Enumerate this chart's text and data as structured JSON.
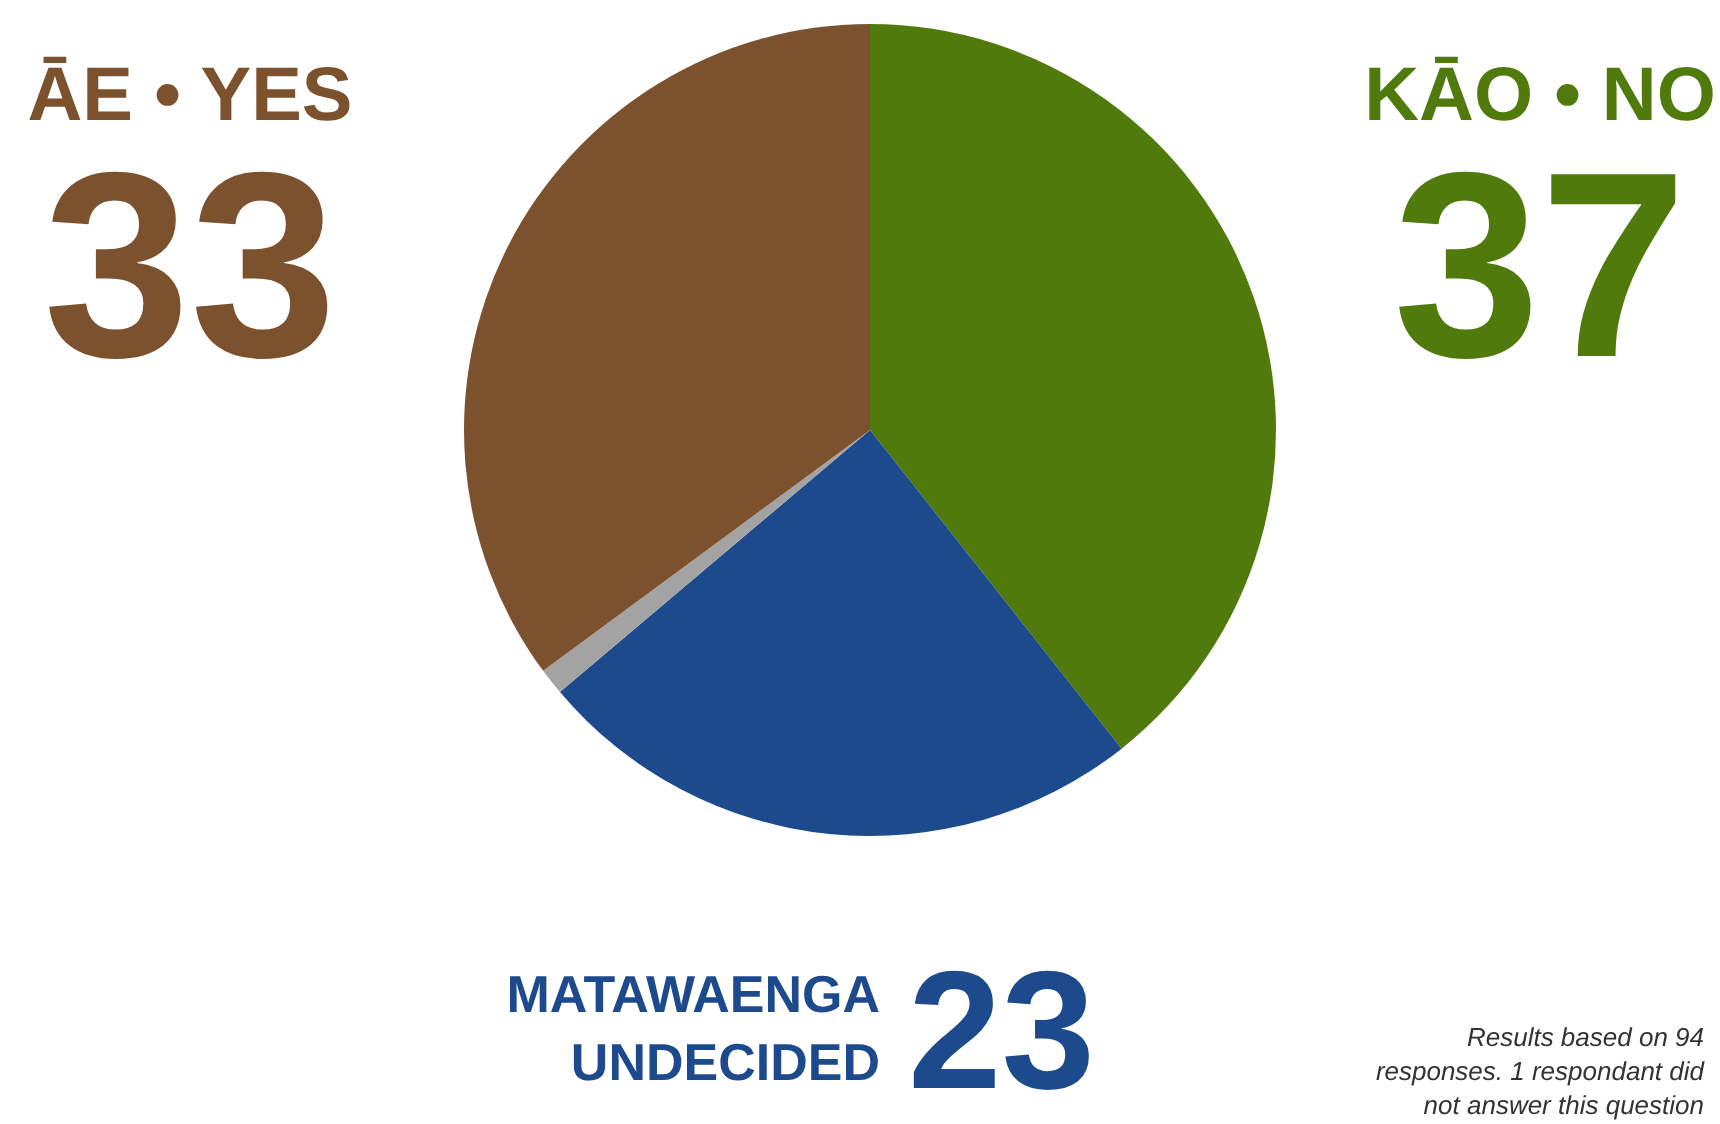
{
  "chart_data": {
    "type": "pie",
    "categories": [
      "KĀO • NO",
      "MATAWAENGA UNDECIDED",
      null,
      "ĀE • YES"
    ],
    "values": [
      37,
      23,
      1,
      33
    ],
    "colors": [
      "#507a0c",
      "#1c4a8c",
      "#a3a3a3",
      "#7c522e"
    ],
    "value_labels": [
      "37",
      "23",
      null,
      "33"
    ],
    "annotations": [
      "Results based on 94 responses. 1 respondant did not answer this question"
    ]
  }
}
